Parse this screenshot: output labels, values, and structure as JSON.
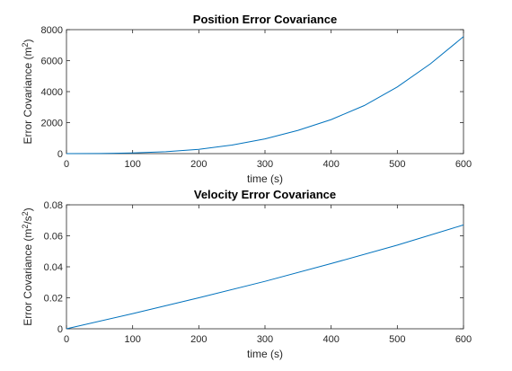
{
  "chart_data": [
    {
      "type": "line",
      "title": "Position Error Covariance",
      "xlabel": "time (s)",
      "ylabel": "Error Covariance (m",
      "ylabel_sup": "2",
      "ylabel_end": ")",
      "xlim": [
        0,
        600
      ],
      "ylim": [
        0,
        8000
      ],
      "xticks": [
        "0",
        "100",
        "200",
        "300",
        "400",
        "500",
        "600"
      ],
      "yticks": [
        "0",
        "2000",
        "4000",
        "6000",
        "8000"
      ],
      "grid": false,
      "color": "#0072BD",
      "series": [
        {
          "x": [
            0,
            50,
            100,
            150,
            200,
            250,
            300,
            350,
            400,
            450,
            500,
            550,
            600
          ],
          "y": [
            0,
            7,
            40,
            120,
            280,
            550,
            950,
            1500,
            2200,
            3100,
            4300,
            5800,
            7550
          ]
        }
      ]
    },
    {
      "type": "line",
      "title": "Velocity Error Covariance",
      "xlabel": "time (s)",
      "ylabel": "Error Covariance (m",
      "ylabel_sup": "2",
      "ylabel_mid": "/s",
      "ylabel_sup2": "2",
      "ylabel_end": ")",
      "xlim": [
        0,
        600
      ],
      "ylim": [
        0,
        0.08
      ],
      "xticks": [
        "0",
        "100",
        "200",
        "300",
        "400",
        "500",
        "600"
      ],
      "yticks": [
        "0",
        "0.02",
        "0.04",
        "0.06",
        "0.08"
      ],
      "grid": false,
      "color": "#0072BD",
      "series": [
        {
          "x": [
            0,
            100,
            200,
            300,
            400,
            500,
            600
          ],
          "y": [
            0,
            0.0098,
            0.02,
            0.0306,
            0.0421,
            0.054,
            0.067
          ]
        }
      ]
    }
  ]
}
